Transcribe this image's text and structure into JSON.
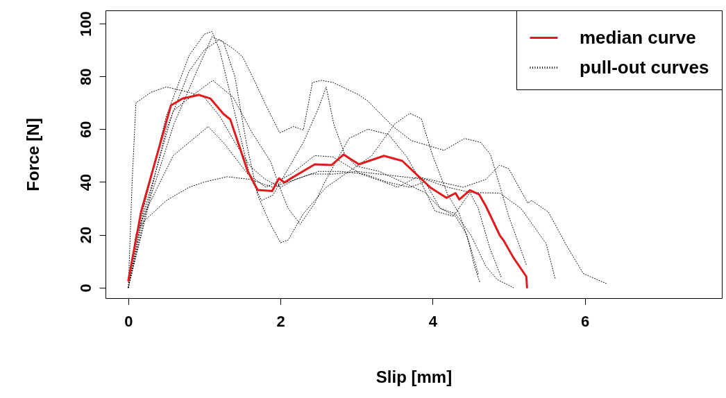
{
  "chart_data": {
    "type": "line",
    "xlabel": "Slip [mm]",
    "ylabel": "Force [N]",
    "xlim": [
      -0.3,
      7.8
    ],
    "ylim": [
      -4,
      105
    ],
    "xticks": [
      0,
      2,
      4,
      6
    ],
    "yticks": [
      0,
      20,
      40,
      60,
      80,
      100
    ],
    "legend": "top right",
    "series": [
      {
        "name": "median curve",
        "color": "#e31a1c",
        "line_style": "solid",
        "x": [
          0,
          0.17,
          0.56,
          0.71,
          0.93,
          1.08,
          1.25,
          1.34,
          1.57,
          1.7,
          1.89,
          1.98,
          2.05,
          2.14,
          2.45,
          2.67,
          2.83,
          3.03,
          3.36,
          3.6,
          3.97,
          4.18,
          4.3,
          4.35,
          4.49,
          4.61,
          4.7,
          4.88,
          4.94,
          5.06,
          5.23,
          5.24
        ],
        "values": [
          2.7,
          29,
          69,
          71.6,
          73,
          71.6,
          65.8,
          63.7,
          44,
          37,
          36.6,
          41.4,
          39.8,
          41.4,
          46.7,
          46.4,
          50.4,
          46.7,
          49.9,
          48,
          37.9,
          34,
          35.8,
          33.4,
          36.9,
          35.3,
          30.8,
          19.9,
          17.5,
          11.4,
          4.2,
          0
        ]
      },
      {
        "name": "pull-out curves",
        "color": "#000000",
        "line_style": "dotted",
        "x": [
          0,
          0.2,
          0.5,
          0.8,
          1.0,
          1.1,
          1.2,
          1.4,
          1.6,
          1.75,
          1.9,
          2.1,
          2.3,
          2.5,
          2.6,
          2.7,
          2.85,
          3.0,
          3.3,
          3.6,
          3.9,
          4.1,
          4.3,
          4.45,
          4.55,
          4.62
        ],
        "values": [
          0,
          30,
          65,
          88,
          96,
          97,
          90,
          66,
          42,
          33,
          35,
          45,
          55,
          68,
          76,
          62,
          50,
          46,
          44,
          40,
          36,
          30,
          27,
          20,
          8,
          2
        ]
      },
      {
        "type": "line",
        "color": "#000000",
        "line_style": "dotted",
        "x": [
          0,
          0.2,
          0.5,
          0.8,
          1.0,
          1.2,
          1.4,
          1.5,
          1.63,
          1.81,
          1.99,
          2.17,
          2.3,
          2.42,
          2.54,
          2.69,
          3.03,
          3.15,
          3.48,
          3.72,
          4.15,
          4.42,
          4.63,
          4.76,
          5.0,
          5.23
        ],
        "values": [
          0,
          25,
          60,
          82,
          90,
          94,
          90,
          87.5,
          80,
          69,
          58.6,
          61,
          59.7,
          77.7,
          78.5,
          77.7,
          73,
          70.6,
          61,
          55.7,
          52,
          56.5,
          55,
          50.4,
          27,
          8.7
        ]
      },
      {
        "type": "line",
        "color": "#000000",
        "line_style": "dotted",
        "x": [
          0,
          0.05,
          0.1,
          0.3,
          0.5,
          0.8,
          1.0,
          1.2,
          1.4,
          1.6,
          1.8,
          2.0,
          2.2,
          2.5,
          2.8,
          3.1,
          3.4,
          3.7,
          3.9,
          4.1,
          4.3,
          4.5,
          4.7,
          4.85,
          5.06
        ],
        "values": [
          0,
          40,
          70,
          74,
          76,
          74,
          72,
          65,
          55,
          46,
          41,
          38,
          41,
          44,
          44,
          43,
          40,
          38,
          40,
          30,
          28,
          20,
          8,
          3,
          0
        ]
      },
      {
        "type": "line",
        "color": "#000000",
        "line_style": "dotted",
        "x": [
          0,
          0.2,
          0.59,
          0.9,
          1.11,
          1.38,
          1.62,
          1.87,
          1.99,
          2.1,
          2.26,
          2.45,
          2.6,
          2.9,
          3.15,
          3.42,
          3.66,
          3.85,
          4.03,
          4.27,
          4.49,
          4.6,
          4.75,
          4.9
        ],
        "values": [
          0,
          28,
          67,
          74,
          78.5,
          72,
          59,
          47.7,
          38,
          30,
          24,
          32,
          41,
          56.5,
          60,
          58,
          49.5,
          39.8,
          29,
          27,
          36,
          30,
          15,
          4
        ]
      },
      {
        "type": "line",
        "color": "#000000",
        "line_style": "dotted",
        "x": [
          0,
          0.1,
          0.23,
          0.59,
          1.05,
          1.26,
          1.57,
          1.81,
          2.14,
          2.45,
          2.69,
          3.06,
          3.36,
          3.54,
          3.8,
          4.1,
          4.4,
          4.6,
          4.7,
          4.88,
          5.0,
          5.25,
          5.3,
          5.52,
          5.76,
          5.98,
          6.3
        ],
        "values": [
          0,
          20,
          29,
          50,
          61,
          54.6,
          43,
          38,
          43,
          50,
          49.5,
          43,
          40,
          38,
          42,
          40,
          38,
          40,
          41,
          46.4,
          45,
          32,
          33,
          28.6,
          15.9,
          5.3,
          1.3
        ]
      },
      {
        "type": "line",
        "color": "#000000",
        "line_style": "dotted",
        "x": [
          0,
          0.1,
          0.2,
          0.5,
          0.8,
          1.0,
          1.3,
          1.6,
          1.9,
          2.1,
          2.4,
          2.7,
          3.0,
          3.3,
          3.6,
          3.9,
          4.2,
          4.5,
          4.88,
          5.16,
          5.49,
          5.61
        ],
        "values": [
          0,
          20,
          25,
          33,
          38,
          40,
          42,
          41,
          38,
          40,
          43,
          43,
          44,
          43,
          42,
          41,
          38,
          36,
          35.8,
          30,
          16.7,
          3.4
        ]
      },
      {
        "type": "line",
        "color": "#000000",
        "line_style": "dotted",
        "x": [
          0,
          0.3,
          0.6,
          0.9,
          1.1,
          1.25,
          1.4,
          1.55,
          1.7,
          1.85,
          2.0,
          2.1,
          2.3,
          2.6,
          2.9,
          3.2,
          3.5,
          3.7,
          3.85,
          4.0,
          4.2,
          4.35,
          4.5,
          4.6
        ],
        "values": [
          0,
          35,
          62,
          82,
          95,
          93,
          80,
          55,
          35,
          25,
          17,
          18,
          28,
          38,
          44,
          50,
          62,
          66,
          64,
          50,
          35,
          28,
          15,
          5
        ]
      }
    ]
  }
}
